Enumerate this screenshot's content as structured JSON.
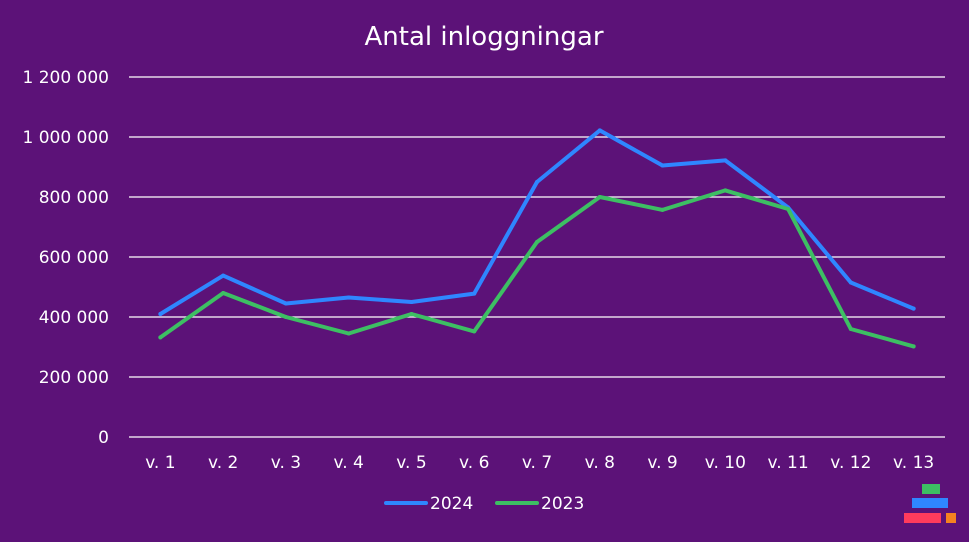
{
  "chart_data": {
    "type": "line",
    "title": "Antal inloggningar",
    "xlabel": "",
    "ylabel": "",
    "categories": [
      "v. 1",
      "v. 2",
      "v. 3",
      "v. 4",
      "v. 5",
      "v. 6",
      "v. 7",
      "v. 8",
      "v. 9",
      "v. 10",
      "v. 11",
      "v. 12",
      "v. 13"
    ],
    "ylim": [
      0,
      1200000
    ],
    "yticks": [
      0,
      200000,
      400000,
      600000,
      800000,
      1000000,
      1200000
    ],
    "ytick_labels": [
      "0",
      "200 000",
      "400 000",
      "600 000",
      "800 000",
      "1 000 000",
      "1 200 000"
    ],
    "grid": true,
    "legend_position": "bottom",
    "series": [
      {
        "name": "2024",
        "color": "#2f86ff",
        "values": [
          410000,
          538000,
          445000,
          465000,
          450000,
          478000,
          850000,
          1022000,
          905000,
          922000,
          765000,
          515000,
          428000
        ]
      },
      {
        "name": "2023",
        "color": "#3dbf63",
        "values": [
          332000,
          480000,
          400000,
          345000,
          410000,
          352000,
          650000,
          800000,
          757000,
          822000,
          760000,
          360000,
          302000
        ]
      }
    ]
  },
  "logo": {
    "name": "logo-icon",
    "colors": [
      "#3dbf63",
      "#2f86ff",
      "#ff3b5c",
      "#f58220"
    ]
  }
}
